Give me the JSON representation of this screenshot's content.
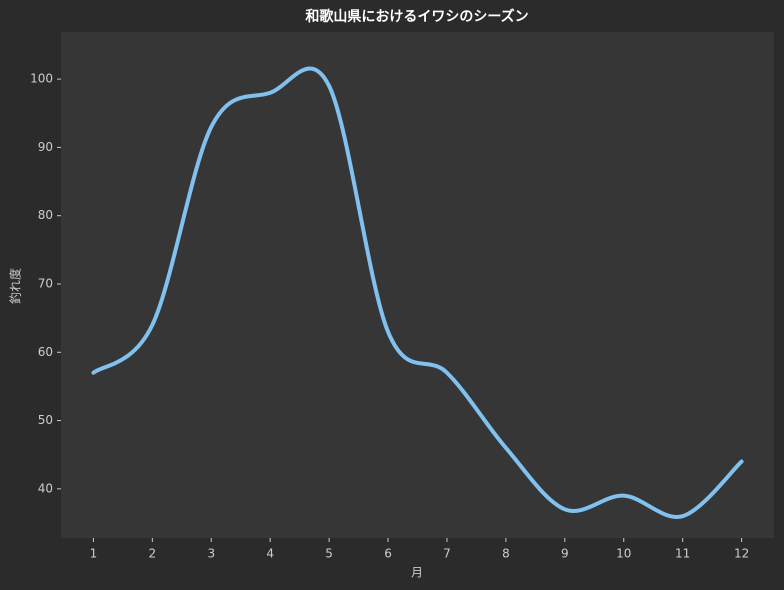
{
  "chart_data": {
    "type": "line",
    "title": "和歌山県におけるイワシのシーズン",
    "xlabel": "月",
    "ylabel": "釣れ度",
    "x": [
      1,
      2,
      3,
      4,
      5,
      6,
      7,
      8,
      9,
      10,
      11,
      12
    ],
    "series": [
      {
        "name": "釣れ度",
        "color": "#80c1f0",
        "values": [
          57,
          64,
          93,
          98,
          99,
          63,
          57,
          46,
          37,
          39,
          36,
          44
        ]
      }
    ],
    "xlim": [
      0.45,
      12.55
    ],
    "xticks": [
      1,
      2,
      3,
      4,
      5,
      6,
      7,
      8,
      9,
      10,
      11,
      12
    ],
    "ylim": [
      32.8,
      106.9
    ],
    "yticks": [
      40,
      50,
      60,
      70,
      80,
      90,
      100
    ],
    "grid": false
  }
}
